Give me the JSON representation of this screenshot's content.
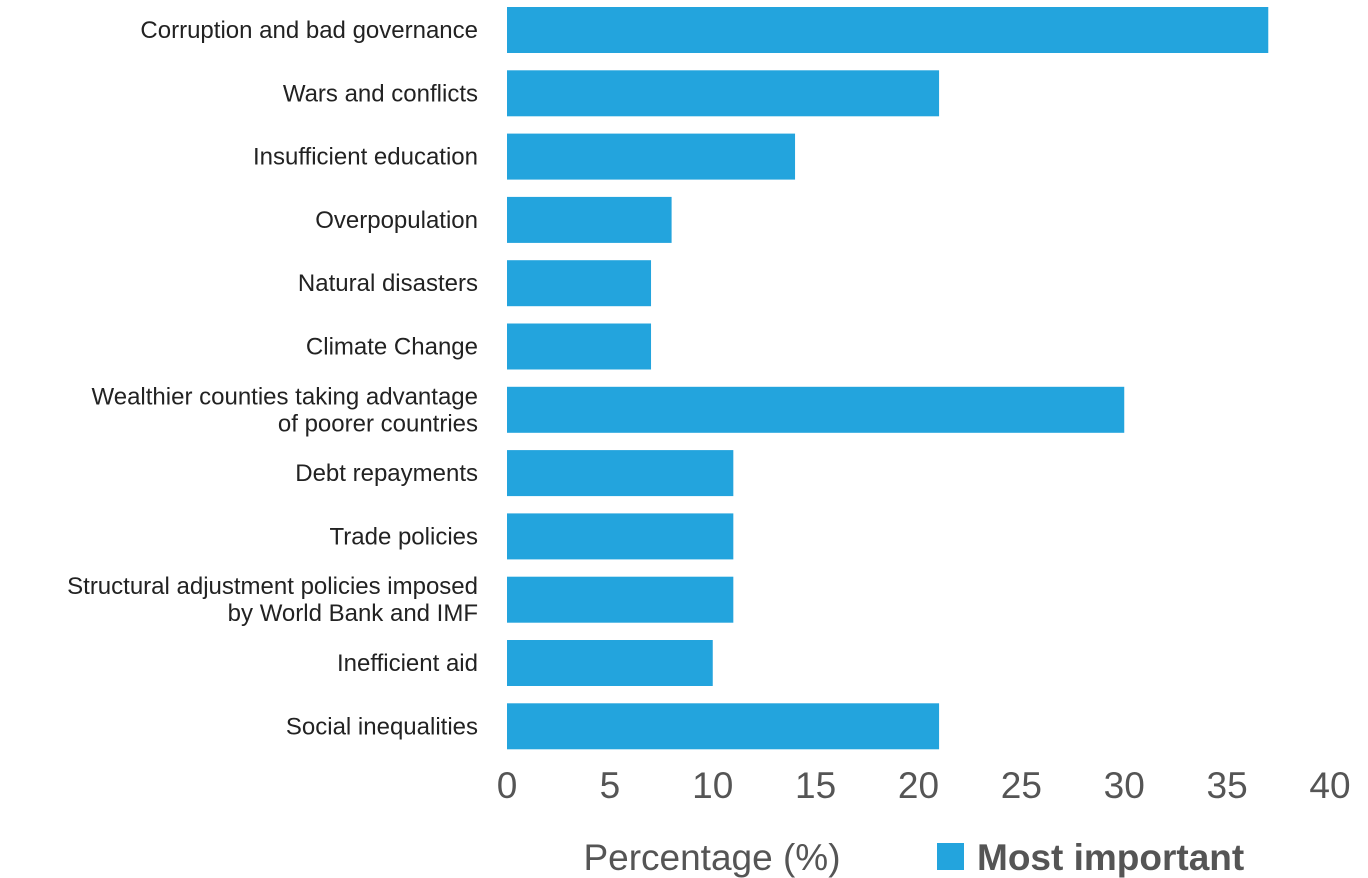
{
  "chart_data": {
    "type": "bar",
    "orientation": "horizontal",
    "categories": [
      [
        "Corruption and bad governance"
      ],
      [
        "Wars and conflicts"
      ],
      [
        "Insufficient education"
      ],
      [
        "Overpopulation"
      ],
      [
        "Natural disasters"
      ],
      [
        "Climate Change"
      ],
      [
        "Wealthier counties taking advantage",
        "of poorer countries"
      ],
      [
        "Debt repayments"
      ],
      [
        "Trade policies"
      ],
      [
        "Structural adjustment policies imposed",
        "by World Bank and IMF"
      ],
      [
        "Inefficient aid"
      ],
      [
        "Social inequalities"
      ]
    ],
    "series": [
      {
        "name": "Most important",
        "color": "#23a4dd",
        "values": [
          37,
          21,
          14,
          8,
          7,
          7,
          30,
          11,
          11,
          11,
          10,
          21
        ]
      }
    ],
    "xlabel": "Percentage (%)",
    "ylabel": "",
    "title": "",
    "xlim": [
      0,
      40
    ],
    "xticks": [
      "0",
      "5",
      "10",
      "15",
      "20",
      "25",
      "30",
      "35",
      "40"
    ],
    "grid": false,
    "legend_position": "bottom-right"
  }
}
